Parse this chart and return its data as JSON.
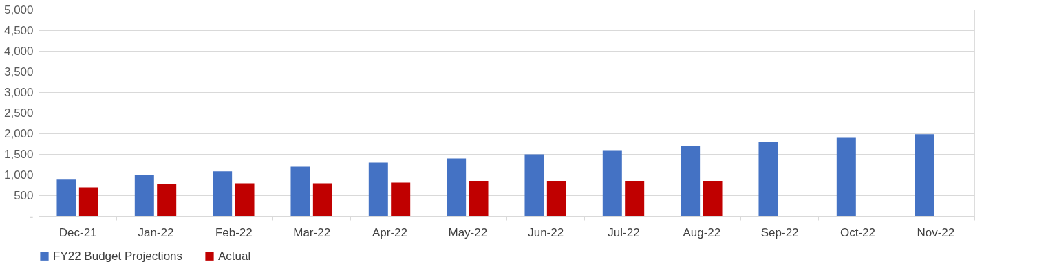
{
  "chart_data": {
    "type": "bar",
    "categories": [
      "Dec-21",
      "Jan-22",
      "Feb-22",
      "Mar-22",
      "Apr-22",
      "May-22",
      "Jun-22",
      "Jul-22",
      "Aug-22",
      "Sep-22",
      "Oct-22",
      "Nov-22"
    ],
    "series": [
      {
        "name": "FY22 Budget Projections",
        "color": "#4472c4",
        "values": [
          880,
          990,
          1080,
          1190,
          1290,
          1390,
          1490,
          1590,
          1690,
          1800,
          1890,
          1980
        ]
      },
      {
        "name": "Actual",
        "color": "#c00000",
        "values": [
          690,
          770,
          790,
          790,
          810,
          840,
          840,
          840,
          840,
          null,
          null,
          null
        ]
      }
    ],
    "ylim": [
      0,
      5000
    ],
    "yticks": [
      {
        "value": 0,
        "label": "-"
      },
      500,
      {
        "value": 1000,
        "label": "1,000"
      },
      {
        "value": 1500,
        "label": "1,500"
      },
      {
        "value": 2000,
        "label": "2,000"
      },
      {
        "value": 2500,
        "label": "2,500"
      },
      {
        "value": 3000,
        "label": "3,000"
      },
      {
        "value": 3500,
        "label": "3,500"
      },
      {
        "value": 4000,
        "label": "4,000"
      },
      {
        "value": 4500,
        "label": "4,500"
      },
      {
        "value": 5000,
        "label": "5,000"
      }
    ],
    "grid": "y",
    "legend": "bottom"
  }
}
